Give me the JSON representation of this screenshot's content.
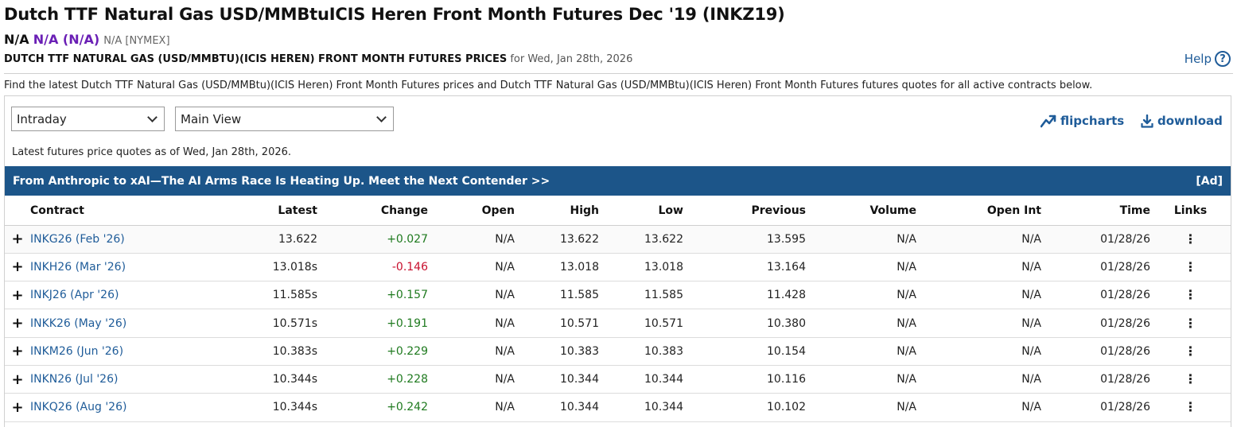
{
  "header": {
    "title": "Dutch TTF Natural Gas USD/MMBtuICIS Heren Front Month Futures Dec '19 (INKZ19)",
    "quote_last": "N/A",
    "quote_change": "N/A (N/A)",
    "quote_exchange": "N/A [NYMEX]",
    "subtitle_bold": "DUTCH TTF NATURAL GAS (USD/MMBTU)(ICIS HEREN) FRONT MONTH FUTURES PRICES",
    "subtitle_date": " for Wed, Jan 28th, 2026",
    "help_label": "Help",
    "help_glyph": "?",
    "description": "Find the latest Dutch TTF Natural Gas (USD/MMBtu)(ICIS Heren) Front Month Futures prices and Dutch TTF Natural Gas (USD/MMBtu)(ICIS Heren) Front Month Futures futures quotes for all active contracts below."
  },
  "controls": {
    "period_select": "Intraday",
    "view_select": "Main View",
    "flipcharts_label": "flipcharts",
    "download_label": "download",
    "as_of": "Latest futures price quotes as of Wed, Jan 28th, 2026."
  },
  "ad": {
    "text": "From Anthropic to xAI—The AI Arms Race Is Heating Up. Meet the Next Contender >>",
    "tag": "[Ad]"
  },
  "table": {
    "headers": {
      "contract": "Contract",
      "latest": "Latest",
      "change": "Change",
      "open": "Open",
      "high": "High",
      "low": "Low",
      "previous": "Previous",
      "volume": "Volume",
      "open_int": "Open Int",
      "time": "Time",
      "links": "Links"
    },
    "expand_glyph": "+",
    "links_glyph": "⋮",
    "rows": [
      {
        "contract": "INKG26 (Feb '26)",
        "latest": "13.622",
        "change": "+0.027",
        "open": "N/A",
        "high": "13.622",
        "low": "13.622",
        "previous": "13.595",
        "volume": "N/A",
        "open_int": "N/A",
        "time": "01/28/26"
      },
      {
        "contract": "INKH26 (Mar '26)",
        "latest": "13.018s",
        "change": "-0.146",
        "open": "N/A",
        "high": "13.018",
        "low": "13.018",
        "previous": "13.164",
        "volume": "N/A",
        "open_int": "N/A",
        "time": "01/28/26"
      },
      {
        "contract": "INKJ26 (Apr '26)",
        "latest": "11.585s",
        "change": "+0.157",
        "open": "N/A",
        "high": "11.585",
        "low": "11.585",
        "previous": "11.428",
        "volume": "N/A",
        "open_int": "N/A",
        "time": "01/28/26"
      },
      {
        "contract": "INKK26 (May '26)",
        "latest": "10.571s",
        "change": "+0.191",
        "open": "N/A",
        "high": "10.571",
        "low": "10.571",
        "previous": "10.380",
        "volume": "N/A",
        "open_int": "N/A",
        "time": "01/28/26"
      },
      {
        "contract": "INKM26 (Jun '26)",
        "latest": "10.383s",
        "change": "+0.229",
        "open": "N/A",
        "high": "10.383",
        "low": "10.383",
        "previous": "10.154",
        "volume": "N/A",
        "open_int": "N/A",
        "time": "01/28/26"
      },
      {
        "contract": "INKN26 (Jul '26)",
        "latest": "10.344s",
        "change": "+0.228",
        "open": "N/A",
        "high": "10.344",
        "low": "10.344",
        "previous": "10.116",
        "volume": "N/A",
        "open_int": "N/A",
        "time": "01/28/26"
      },
      {
        "contract": "INKQ26 (Aug '26)",
        "latest": "10.344s",
        "change": "+0.242",
        "open": "N/A",
        "high": "10.344",
        "low": "10.344",
        "previous": "10.102",
        "volume": "N/A",
        "open_int": "N/A",
        "time": "01/28/26"
      }
    ]
  },
  "colors": {
    "accent": "#1f5c99",
    "ad_bar": "#1c5589",
    "positive": "#1f7a1f",
    "negative": "#c8102e",
    "quote_change": "#6a1fb5"
  },
  "icons": {
    "flipcharts": "trend-chart-icon",
    "download": "download-icon",
    "help": "question-circle-icon",
    "expand": "plus-icon",
    "links": "vertical-ellipsis-icon",
    "select": "chevron-down-icon"
  }
}
